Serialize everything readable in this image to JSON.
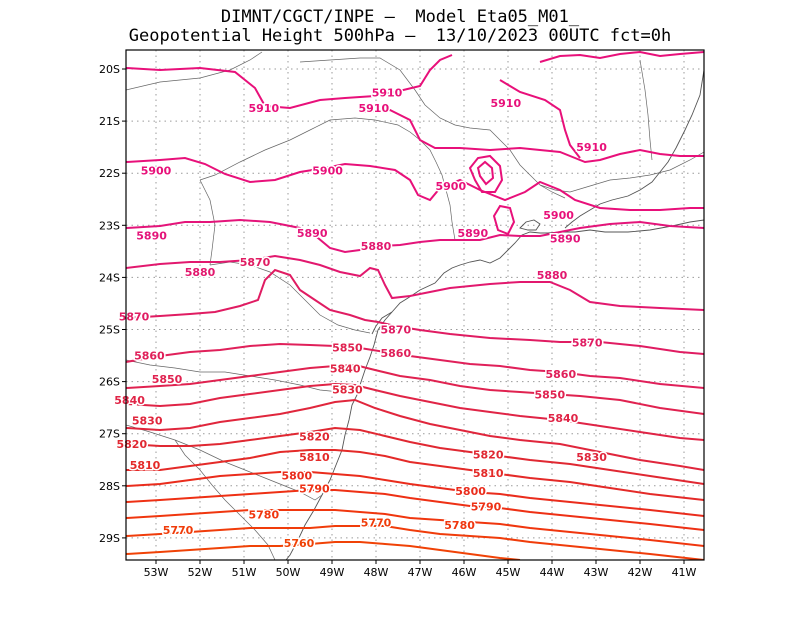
{
  "title": {
    "line1": "DIMNT/CGCT/INPE –  Model Eta05_M01_",
    "line2": "Geopotential Height 500hPa –  13/10/2023 00UTC fct=0h"
  },
  "axes": {
    "x_ticks": [
      "53W",
      "52W",
      "51W",
      "50W",
      "49W",
      "48W",
      "47W",
      "46W",
      "45W",
      "44W",
      "43W",
      "42W",
      "41W"
    ],
    "y_ticks": [
      "20S",
      "21S",
      "22S",
      "23S",
      "24S",
      "25S",
      "26S",
      "27S",
      "28S",
      "29S"
    ]
  },
  "contour_levels": [
    {
      "value": 5910,
      "color": "#e8107a"
    },
    {
      "value": 5900,
      "color": "#e8107a"
    },
    {
      "value": 5890,
      "color": "#e4147a"
    },
    {
      "value": 5880,
      "color": "#e2186e"
    },
    {
      "value": 5870,
      "color": "#e01c62"
    },
    {
      "value": 5860,
      "color": "#e0205a"
    },
    {
      "value": 5850,
      "color": "#e02250"
    },
    {
      "value": 5840,
      "color": "#e02446"
    },
    {
      "value": 5830,
      "color": "#e0263c"
    },
    {
      "value": 5820,
      "color": "#e02832"
    },
    {
      "value": 5810,
      "color": "#e42a28"
    },
    {
      "value": 5800,
      "color": "#ea2c1c"
    },
    {
      "value": 5790,
      "color": "#ee3014"
    },
    {
      "value": 5780,
      "color": "#f0360e"
    },
    {
      "value": 5770,
      "color": "#f03c0a"
    },
    {
      "value": 5760,
      "color": "#f04206"
    }
  ],
  "contour_labels": [
    {
      "text": "5910",
      "lon": -50.55,
      "lat": -20.75,
      "color": "#e8107a"
    },
    {
      "text": "5910",
      "lon": -48.05,
      "lat": -20.75,
      "color": "#e8107a"
    },
    {
      "text": "5910",
      "lon": -47.75,
      "lat": -20.45,
      "color": "#e8107a"
    },
    {
      "text": "5910",
      "lon": -45.05,
      "lat": -20.65,
      "color": "#e8107a"
    },
    {
      "text": "5910",
      "lon": -43.1,
      "lat": -21.5,
      "color": "#e8107a"
    },
    {
      "text": "5900",
      "lon": -53.0,
      "lat": -21.95,
      "color": "#e8107a"
    },
    {
      "text": "5900",
      "lon": -49.1,
      "lat": -21.95,
      "color": "#e8107a"
    },
    {
      "text": "5900",
      "lon": -46.3,
      "lat": -22.25,
      "color": "#e8107a"
    },
    {
      "text": "5900",
      "lon": -43.85,
      "lat": -22.8,
      "color": "#e8107a"
    },
    {
      "text": "5890",
      "lon": -53.1,
      "lat": -23.2,
      "color": "#e4147a"
    },
    {
      "text": "5890",
      "lon": -49.45,
      "lat": -23.15,
      "color": "#e4147a"
    },
    {
      "text": "5890",
      "lon": -45.8,
      "lat": -23.15,
      "color": "#e4147a"
    },
    {
      "text": "5890",
      "lon": -43.7,
      "lat": -23.25,
      "color": "#e4147a"
    },
    {
      "text": "5880",
      "lon": -52.0,
      "lat": -23.9,
      "color": "#e2186e"
    },
    {
      "text": "5880",
      "lon": -48.0,
      "lat": -23.4,
      "color": "#e2186e"
    },
    {
      "text": "5880",
      "lon": -44.0,
      "lat": -23.95,
      "color": "#e2186e"
    },
    {
      "text": "5870",
      "lon": -50.75,
      "lat": -23.7,
      "color": "#e01c62"
    },
    {
      "text": "5870",
      "lon": -53.5,
      "lat": -24.75,
      "color": "#e01c62"
    },
    {
      "text": "5870",
      "lon": -47.55,
      "lat": -25.0,
      "color": "#e01c62"
    },
    {
      "text": "5870",
      "lon": -43.2,
      "lat": -25.25,
      "color": "#e01c62"
    },
    {
      "text": "5860",
      "lon": -53.15,
      "lat": -25.5,
      "color": "#e0205a"
    },
    {
      "text": "5860",
      "lon": -47.55,
      "lat": -25.45,
      "color": "#e0205a"
    },
    {
      "text": "5860",
      "lon": -43.8,
      "lat": -25.85,
      "color": "#e0205a"
    },
    {
      "text": "5850",
      "lon": -52.75,
      "lat": -25.95,
      "color": "#e02250"
    },
    {
      "text": "5850",
      "lon": -48.65,
      "lat": -25.35,
      "color": "#e02250"
    },
    {
      "text": "5850",
      "lon": -44.05,
      "lat": -26.25,
      "color": "#e02250"
    },
    {
      "text": "5840",
      "lon": -53.6,
      "lat": -26.35,
      "color": "#e02446"
    },
    {
      "text": "5840",
      "lon": -48.7,
      "lat": -25.75,
      "color": "#e02446"
    },
    {
      "text": "5840",
      "lon": -43.75,
      "lat": -26.7,
      "color": "#e02446"
    },
    {
      "text": "5830",
      "lon": -53.2,
      "lat": -26.75,
      "color": "#e0263c"
    },
    {
      "text": "5830",
      "lon": -48.65,
      "lat": -26.15,
      "color": "#e0263c"
    },
    {
      "text": "5830",
      "lon": -43.1,
      "lat": -27.45,
      "color": "#e0263c"
    },
    {
      "text": "5820",
      "lon": -53.55,
      "lat": -27.2,
      "color": "#e02832"
    },
    {
      "text": "5820",
      "lon": -49.4,
      "lat": -27.05,
      "color": "#e02832"
    },
    {
      "text": "5820",
      "lon": -45.45,
      "lat": -27.4,
      "color": "#e02832"
    },
    {
      "text": "5810",
      "lon": -53.25,
      "lat": -27.6,
      "color": "#e42a28"
    },
    {
      "text": "5810",
      "lon": -49.4,
      "lat": -27.45,
      "color": "#e42a28"
    },
    {
      "text": "5810",
      "lon": -45.45,
      "lat": -27.75,
      "color": "#e42a28"
    },
    {
      "text": "5800",
      "lon": -49.8,
      "lat": -27.8,
      "color": "#ea2c1c"
    },
    {
      "text": "5800",
      "lon": -45.85,
      "lat": -28.1,
      "color": "#ea2c1c"
    },
    {
      "text": "5790",
      "lon": -49.4,
      "lat": -28.05,
      "color": "#ee3014"
    },
    {
      "text": "5790",
      "lon": -45.5,
      "lat": -28.4,
      "color": "#ee3014"
    },
    {
      "text": "5780",
      "lon": -50.55,
      "lat": -28.55,
      "color": "#f0360e"
    },
    {
      "text": "5780",
      "lon": -46.1,
      "lat": -28.75,
      "color": "#f0360e"
    },
    {
      "text": "5770",
      "lon": -52.5,
      "lat": -28.85,
      "color": "#f03c0a"
    },
    {
      "text": "5770",
      "lon": -48.0,
      "lat": -28.7,
      "color": "#f03c0a"
    },
    {
      "text": "5760",
      "lon": -49.75,
      "lat": -29.1,
      "color": "#f04206"
    }
  ],
  "colors": {
    "frame": "#000000",
    "grid": "#9a9a9a",
    "coast": "#555555"
  }
}
